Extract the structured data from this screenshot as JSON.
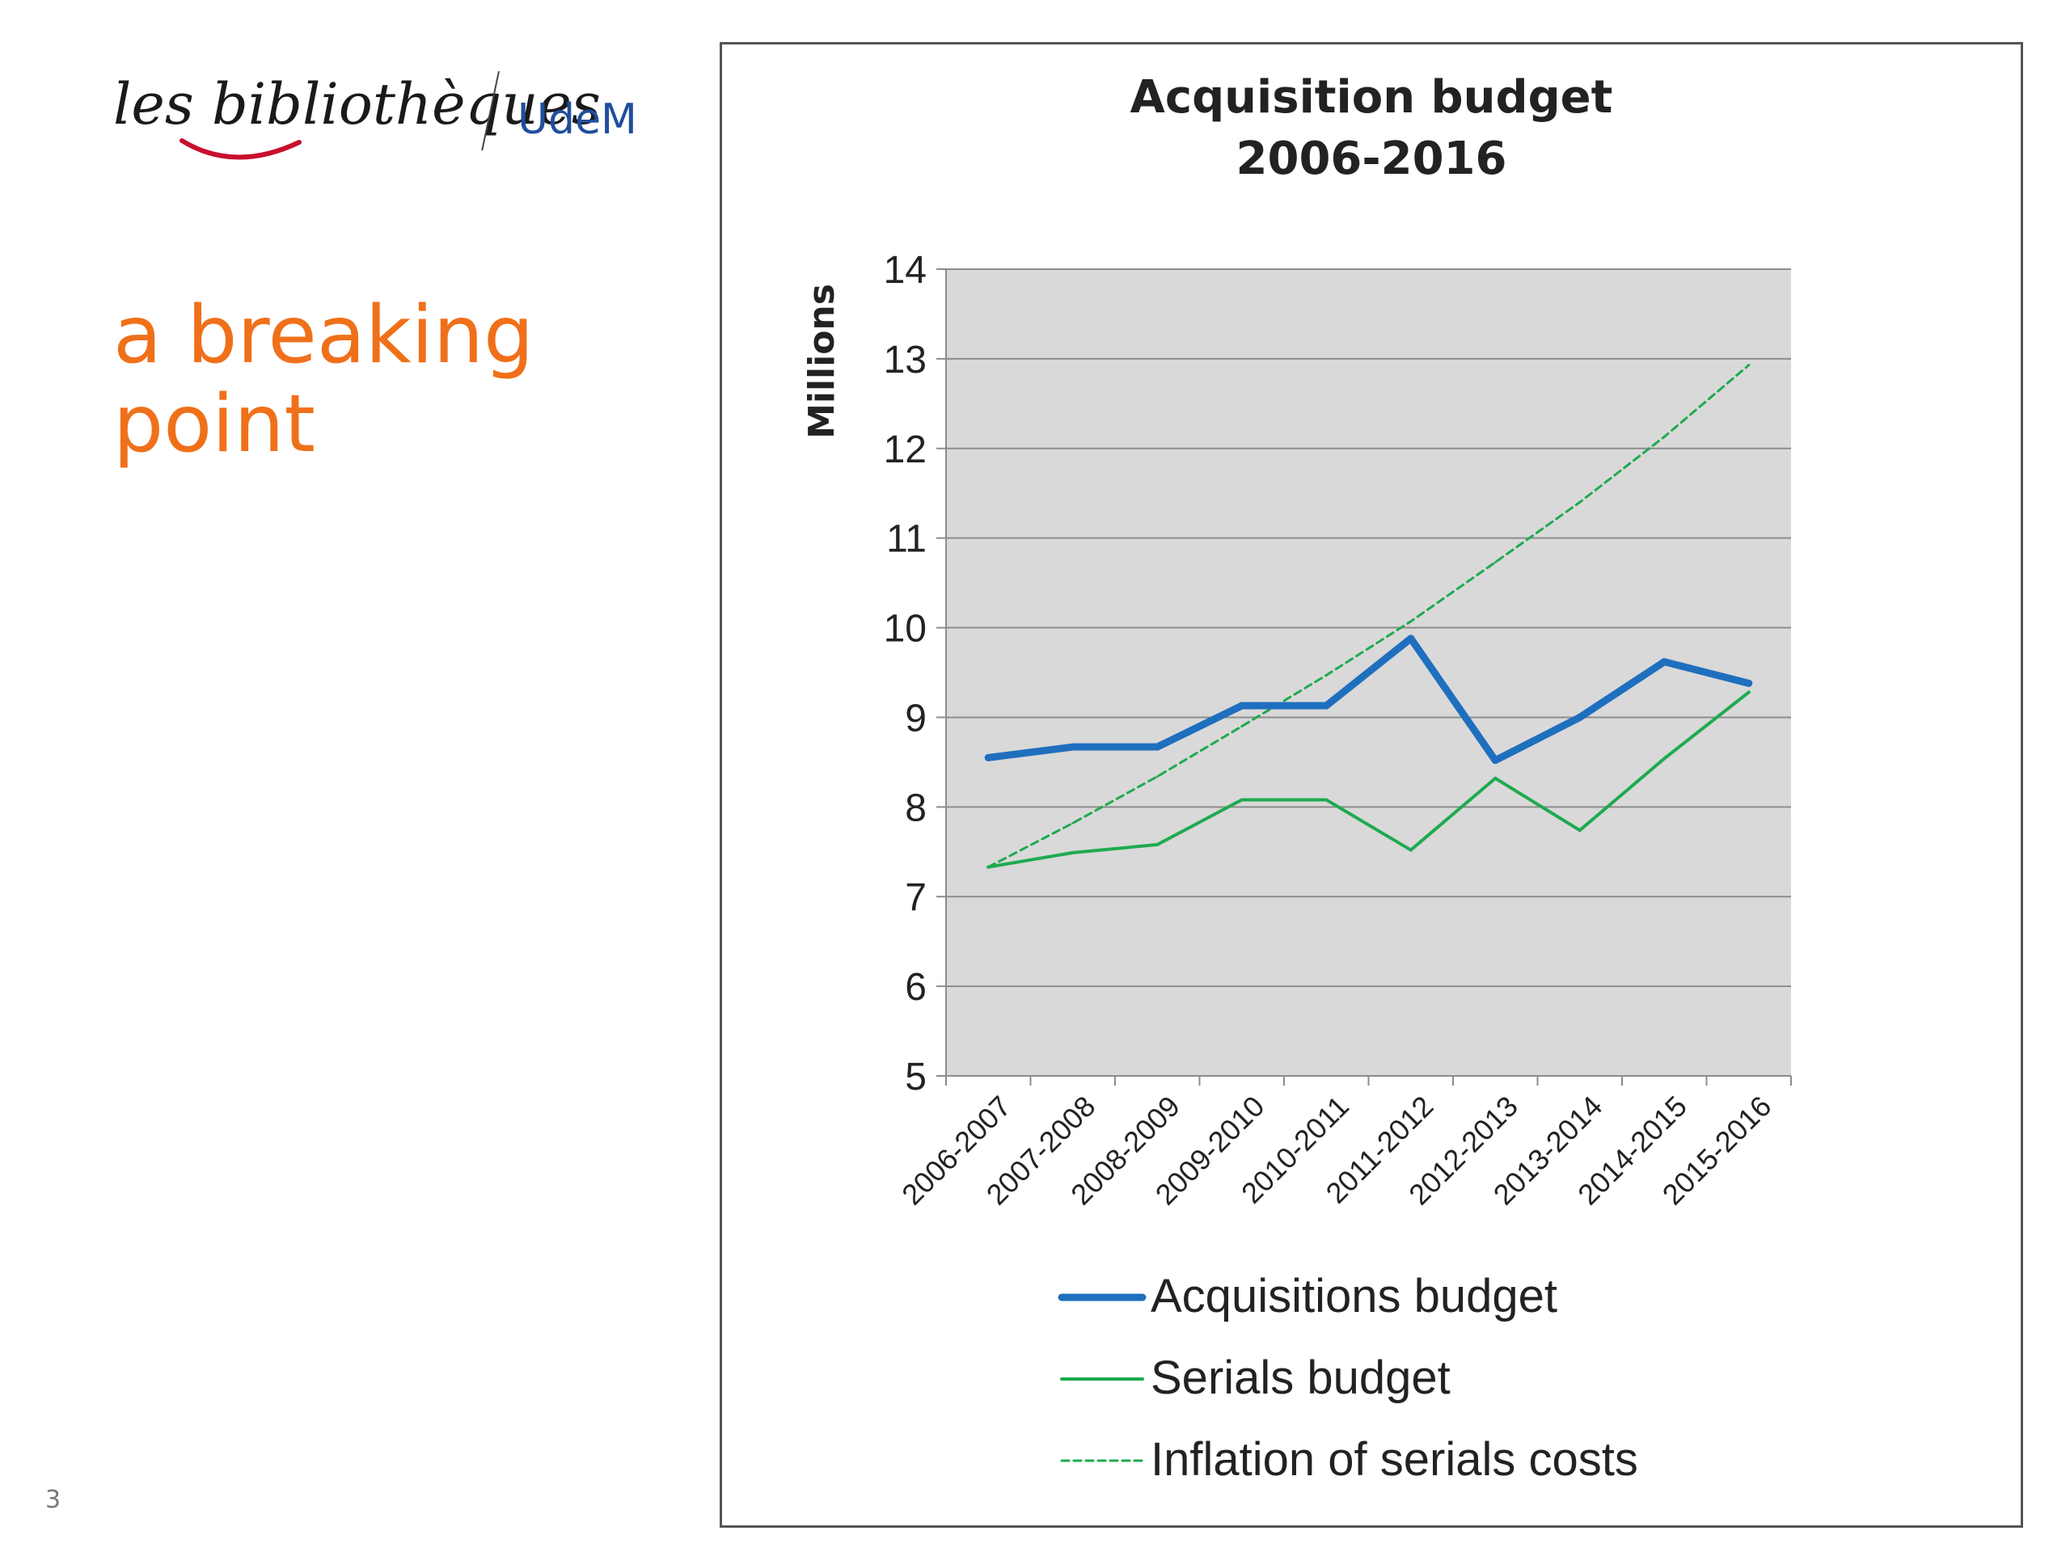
{
  "logo": {
    "script_text": "les bibliothèques",
    "brand_text": "UdeM"
  },
  "slide": {
    "title": "a breaking point",
    "number": "3"
  },
  "colors": {
    "title_orange": "#f0701a",
    "acquisitions_blue": "#1f6fbf",
    "serials_green": "#1faa4f",
    "inflation_green": "#1faa4f",
    "plot_background": "#d9d9d9",
    "brand_blue": "#1f4e9c",
    "logo_swoosh_red": "#c8102e"
  },
  "chart_data": {
    "type": "line",
    "title": "Acquisition budget",
    "subtitle": "2006-2016",
    "ylabel": "Millions",
    "xlabel": "",
    "ylim": [
      5,
      14
    ],
    "yticks": [
      "5",
      "6",
      "7",
      "8",
      "9",
      "10",
      "11",
      "12",
      "13",
      "14"
    ],
    "grid": "horizontal",
    "legend_position": "bottom",
    "categories": [
      "2006-2007",
      "2007-2008",
      "2008-2009",
      "2009-2010",
      "2010-2011",
      "2011-2012",
      "2012-2013",
      "2013-2014",
      "2014-2015",
      "2015-2016"
    ],
    "series": [
      {
        "name": "Acquisitions budget",
        "values": [
          8.55,
          8.67,
          8.67,
          9.13,
          9.13,
          9.88,
          8.52,
          9.0,
          9.62,
          9.38
        ],
        "color": "#1f6fbf",
        "style": "solid-thick"
      },
      {
        "name": "Serials budget",
        "values": [
          7.33,
          7.49,
          7.58,
          8.08,
          8.08,
          7.52,
          8.32,
          7.74,
          8.54,
          9.28
        ],
        "color": "#1faa4f",
        "style": "solid-thin"
      },
      {
        "name": "Inflation of serials costs",
        "values": [
          7.33,
          7.82,
          8.34,
          8.9,
          9.47,
          10.07,
          10.73,
          11.4,
          12.13,
          12.93
        ],
        "color": "#1faa4f",
        "style": "dashed"
      }
    ]
  }
}
